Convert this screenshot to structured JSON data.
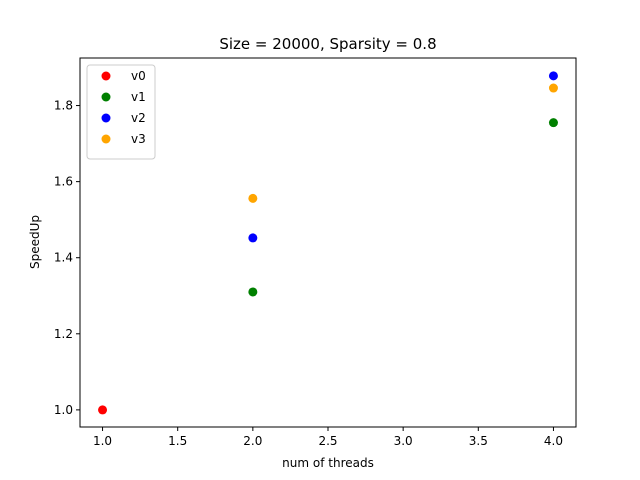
{
  "chart_data": {
    "type": "scatter",
    "title": "Size = 20000, Sparsity = 0.8",
    "xlabel": "num of threads",
    "ylabel": "SpeedUp",
    "xlim": [
      0.85,
      4.15
    ],
    "ylim": [
      0.955,
      1.925
    ],
    "xticks": [
      1.0,
      1.5,
      2.0,
      2.5,
      3.0,
      3.5,
      4.0
    ],
    "xtick_labels": [
      "1.0",
      "1.5",
      "2.0",
      "2.5",
      "3.0",
      "3.5",
      "4.0"
    ],
    "yticks": [
      1.0,
      1.2,
      1.4,
      1.6,
      1.8
    ],
    "ytick_labels": [
      "1.0",
      "1.2",
      "1.4",
      "1.6",
      "1.8"
    ],
    "legend_position": "top-left",
    "series": [
      {
        "name": "v0",
        "color": "#ff0000",
        "points": [
          [
            1,
            1.0
          ]
        ]
      },
      {
        "name": "v1",
        "color": "#008000",
        "points": [
          [
            2,
            1.31
          ],
          [
            4,
            1.755
          ]
        ]
      },
      {
        "name": "v2",
        "color": "#0000ff",
        "points": [
          [
            2,
            1.452
          ],
          [
            4,
            1.878
          ]
        ]
      },
      {
        "name": "v3",
        "color": "#ffa500",
        "points": [
          [
            2,
            1.556
          ],
          [
            4,
            1.846
          ]
        ]
      }
    ]
  }
}
